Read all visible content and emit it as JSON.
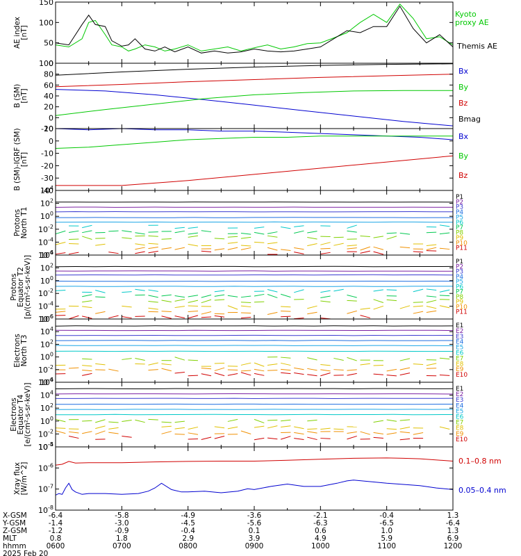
{
  "colors": {
    "black": "#000000",
    "green": "#00c800",
    "red": "#d00000",
    "blue": "#0000d0",
    "p_levels": [
      "#000000",
      "#7a1fa2",
      "#3a3ad0",
      "#1e6ee0",
      "#1aa5e6",
      "#00c8c8",
      "#00c850",
      "#80d000",
      "#e0c000",
      "#f09000",
      "#d00000"
    ]
  },
  "chart_data": [
    {
      "type": "line",
      "panel": "ae",
      "ylabel": [
        "AE index",
        "[nT]"
      ],
      "ylim": [
        0,
        150
      ],
      "yticks": [
        "0",
        "50",
        "100",
        "150"
      ],
      "legend": [
        "Kyoto",
        "proxy AE",
        "Themis AE"
      ],
      "series": [
        {
          "name": "Kyoto proxy AE",
          "color": "green",
          "x": [
            0,
            4,
            8,
            10,
            12,
            15,
            17,
            20,
            22,
            24,
            27,
            30,
            33,
            36,
            40,
            44,
            48,
            52,
            56,
            60,
            64,
            68,
            72,
            76,
            80,
            84,
            88,
            92,
            96,
            100,
            104,
            108,
            112,
            116,
            120
          ],
          "values": [
            45,
            40,
            60,
            100,
            105,
            70,
            45,
            40,
            30,
            35,
            45,
            40,
            30,
            35,
            45,
            30,
            35,
            40,
            30,
            38,
            45,
            35,
            40,
            48,
            50,
            62,
            75,
            100,
            120,
            100,
            145,
            110,
            60,
            65,
            45
          ]
        },
        {
          "name": "Themis AE",
          "color": "black",
          "x": [
            0,
            4,
            8,
            10,
            12,
            15,
            17,
            20,
            22,
            24,
            27,
            30,
            33,
            36,
            40,
            44,
            48,
            52,
            56,
            60,
            64,
            68,
            72,
            76,
            80,
            84,
            88,
            92,
            96,
            100,
            104,
            108,
            112,
            116,
            120
          ],
          "values": [
            50,
            45,
            95,
            118,
            95,
            90,
            55,
            42,
            45,
            60,
            35,
            30,
            40,
            28,
            40,
            25,
            30,
            25,
            28,
            35,
            30,
            28,
            30,
            35,
            40,
            60,
            80,
            75,
            90,
            90,
            140,
            85,
            50,
            70,
            40
          ]
        }
      ]
    },
    {
      "type": "line",
      "panel": "bsm",
      "ylabel": [
        "B (SM)",
        "[nT]"
      ],
      "ylim": [
        -20,
        100
      ],
      "yticks": [
        "-20",
        "0",
        "20",
        "40",
        "60",
        "80",
        "100"
      ],
      "legend": [
        "Bx",
        "By",
        "Bz",
        "Bmag"
      ],
      "series": [
        {
          "name": "Bx",
          "color": "blue",
          "x": [
            0,
            15,
            30,
            45,
            60,
            75,
            90,
            105,
            120
          ],
          "values": [
            52,
            49,
            42,
            33,
            23,
            13,
            3,
            -7,
            -15
          ]
        },
        {
          "name": "By",
          "color": "green",
          "x": [
            0,
            15,
            30,
            45,
            60,
            75,
            90,
            105,
            120
          ],
          "values": [
            4,
            15,
            25,
            35,
            42,
            46,
            49,
            50,
            50
          ]
        },
        {
          "name": "Bz",
          "color": "red",
          "x": [
            0,
            20,
            40,
            60,
            80,
            100,
            120
          ],
          "values": [
            57,
            61,
            66,
            70,
            74,
            77,
            80
          ]
        },
        {
          "name": "Bmag",
          "color": "black",
          "x": [
            0,
            20,
            40,
            60,
            80,
            100,
            120
          ],
          "values": [
            78,
            84,
            89,
            93,
            96,
            98,
            99
          ]
        }
      ]
    },
    {
      "type": "line",
      "panel": "bres",
      "ylabel": [
        "B (SM)-IGRF (SM)",
        "[nT]"
      ],
      "ylim": [
        -40,
        10
      ],
      "yticks": [
        "-40",
        "-30",
        "-20",
        "-10",
        "0",
        "10"
      ],
      "legend": [
        "Bx",
        "By",
        "Bz"
      ],
      "series": [
        {
          "name": "Bx",
          "color": "blue",
          "x": [
            0,
            10,
            20,
            30,
            40,
            50,
            60,
            70,
            80,
            90,
            100,
            110,
            120
          ],
          "values": [
            10,
            9,
            10,
            9,
            9,
            8,
            8,
            7,
            6,
            5,
            4,
            3,
            1
          ]
        },
        {
          "name": "By",
          "color": "green",
          "x": [
            0,
            10,
            20,
            30,
            40,
            50,
            60,
            70,
            80,
            90,
            100,
            110,
            120
          ],
          "values": [
            -6,
            -5,
            -3,
            -1,
            1,
            2,
            3,
            3,
            4,
            4,
            4,
            4,
            4
          ]
        },
        {
          "name": "Bz",
          "color": "red",
          "x": [
            0,
            20,
            40,
            60,
            80,
            100,
            120
          ],
          "values": [
            -36,
            -36,
            -32,
            -27,
            -22,
            -17,
            -12
          ]
        }
      ]
    },
    {
      "type": "line",
      "panel": "p1",
      "ylabel": [
        "Protons",
        "North T1"
      ],
      "ylog": true,
      "ylim": [
        -6,
        4
      ],
      "yticks": [
        "10^-6",
        "10^-4",
        "10^-2",
        "10^0",
        "10^2",
        "10^4"
      ],
      "legend": [
        "P1",
        "P2",
        "P3",
        "P4",
        "P5",
        "P6",
        "P7",
        "P8",
        "P9",
        "P10",
        "P11"
      ],
      "levels": [
        2.2,
        1.4,
        0.7,
        -0.2,
        -0.9,
        -1.6,
        -2.5,
        -3.3,
        -4.3,
        -5.0,
        -5.6
      ]
    },
    {
      "type": "line",
      "panel": "p2",
      "ylabel": [
        "Protons",
        "Equator T2",
        "[p/(cm²-s-sr-keV)]"
      ],
      "ylog": true,
      "ylim": [
        -6,
        4
      ],
      "yticks": [
        "10^-6",
        "10^-4",
        "10^-2",
        "10^0",
        "10^2",
        "10^4"
      ],
      "legend": [
        "P1",
        "P2",
        "P3",
        "P4",
        "P5",
        "P6",
        "P7",
        "P8",
        "P9",
        "P10",
        "P11"
      ],
      "levels": [
        2.2,
        1.5,
        0.9,
        -0.1,
        -0.9,
        -1.6,
        -2.4,
        -3.2,
        -4.2,
        -5.0,
        -5.7
      ]
    },
    {
      "type": "line",
      "panel": "e1",
      "ylabel": [
        "Electrons",
        "North T3"
      ],
      "ylog": true,
      "ylim": [
        -4,
        6
      ],
      "yticks": [
        "10^-4",
        "10^-2",
        "10^0",
        "10^2",
        "10^4",
        "10^6"
      ],
      "legend": [
        "E1",
        "E2",
        "E3",
        "E4",
        "E5",
        "E6",
        "E7",
        "E8",
        "E9",
        "E10"
      ],
      "levels": [
        4.9,
        4.2,
        3.4,
        2.6,
        1.8,
        0.9,
        -0.3,
        -1.2,
        -2.0,
        -2.7
      ]
    },
    {
      "type": "line",
      "panel": "e2",
      "ylabel": [
        "Electrons",
        "Equator T4",
        "[e/(cm²-s-sr-keV)]"
      ],
      "ylog": true,
      "ylim": [
        -4,
        6
      ],
      "yticks": [
        "10^-4",
        "10^-2",
        "10^0",
        "10^2",
        "10^4",
        "10^6"
      ],
      "legend": [
        "E1",
        "E2",
        "E3",
        "E4",
        "E5",
        "E6",
        "E7",
        "E8",
        "E9",
        "E10"
      ],
      "levels": [
        5.0,
        4.2,
        3.5,
        2.6,
        1.8,
        1.0,
        0.0,
        -1.0,
        -1.8,
        -2.6
      ]
    },
    {
      "type": "line",
      "panel": "xray",
      "ylabel": [
        "Xray flux",
        "[W/m^2]"
      ],
      "ylog": true,
      "ylim": [
        -9,
        -5
      ],
      "yticks": [
        "10^-8",
        "10^-7",
        "10^-6",
        "10^-5"
      ],
      "legend": [
        "0.1–0.8 nm",
        "0.05–0.4 nm"
      ],
      "series": [
        {
          "name": "0.1–0.8 nm",
          "color": "red",
          "x": [
            0,
            2,
            4,
            6,
            10,
            20,
            30,
            40,
            50,
            60,
            70,
            80,
            90,
            100,
            105,
            110,
            120
          ],
          "values": [
            -6.15,
            -6.1,
            -5.92,
            -6.02,
            -6.0,
            -6.0,
            -5.95,
            -5.92,
            -5.9,
            -5.9,
            -5.85,
            -5.78,
            -5.72,
            -5.7,
            -5.72,
            -5.75,
            -5.9
          ]
        },
        {
          "name": "0.05–0.4 nm",
          "color": "blue",
          "x": [
            0,
            1,
            2,
            3,
            4,
            5,
            6,
            8,
            10,
            15,
            20,
            25,
            28,
            30,
            32,
            35,
            38,
            40,
            45,
            50,
            55,
            58,
            60,
            65,
            70,
            75,
            80,
            85,
            88,
            90,
            95,
            100,
            110,
            115,
            120
          ],
          "values": [
            -8.05,
            -7.95,
            -8.0,
            -7.6,
            -7.3,
            -7.7,
            -7.85,
            -8.0,
            -7.95,
            -7.95,
            -8.0,
            -7.95,
            -7.8,
            -7.6,
            -7.3,
            -7.7,
            -7.85,
            -7.85,
            -7.8,
            -7.9,
            -7.8,
            -7.65,
            -7.7,
            -7.5,
            -7.35,
            -7.5,
            -7.5,
            -7.3,
            -7.15,
            -7.1,
            -7.2,
            -7.3,
            -7.45,
            -7.6,
            -7.7
          ]
        }
      ]
    }
  ],
  "xaxis": {
    "tick_positions": [
      0,
      20,
      40,
      60,
      80,
      100,
      120
    ],
    "rows": [
      {
        "label": "X-GSM",
        "values": [
          "-6.4",
          "-5.8",
          "-4.9",
          "-3.6",
          "-2.1",
          "-0.4",
          "1.3"
        ]
      },
      {
        "label": "Y-GSM",
        "values": [
          "-1.4",
          "-3.0",
          "-4.5",
          "-5.6",
          "-6.3",
          "-6.5",
          "-6.4"
        ]
      },
      {
        "label": "Z-GSM",
        "values": [
          "-1.2",
          "-0.9",
          "-0.4",
          "0.1",
          "0.6",
          "1.0",
          "1.3"
        ]
      },
      {
        "label": "MLT",
        "values": [
          "0.8",
          "1.8",
          "2.9",
          "3.9",
          "4.9",
          "5.9",
          "6.9"
        ]
      },
      {
        "label": "hhmm",
        "values": [
          "0600",
          "0700",
          "0800",
          "0900",
          "1000",
          "1100",
          "1200"
        ]
      }
    ],
    "date": "2025 Feb 20"
  }
}
